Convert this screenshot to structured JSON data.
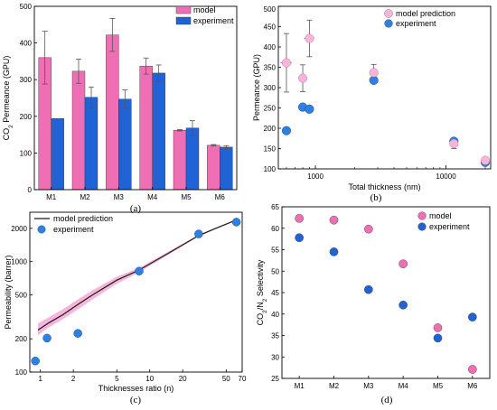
{
  "chart_data": [
    {
      "type": "bar",
      "panel_label": "(a)",
      "ylabel_main": "CO",
      "ylabel_sub": "2",
      "ylabel_rest": " Permeance (GPU)",
      "categories": [
        "M1",
        "M2",
        "M3",
        "M4",
        "M5",
        "M6"
      ],
      "ylim": [
        0,
        500
      ],
      "yticks": [
        0,
        100,
        200,
        300,
        400,
        500
      ],
      "legend_position": "top-right",
      "series": [
        {
          "name": "model",
          "color": "#f06fb4",
          "values": [
            360,
            323,
            422,
            337,
            162,
            121
          ],
          "err": [
            72,
            33,
            45,
            22,
            2,
            2
          ]
        },
        {
          "name": "experiment",
          "color": "#1f63d6",
          "values": [
            194,
            252,
            247,
            318,
            168,
            116
          ],
          "err": [
            0,
            28,
            25,
            22,
            20,
            4
          ]
        }
      ]
    },
    {
      "type": "scatter",
      "panel_label": "(b)",
      "xlabel": "Total thickness (nm)",
      "ylabel": "Permeance (GPU)",
      "x_scale": "log",
      "xlim": [
        520,
        22000
      ],
      "ylim": [
        100,
        500
      ],
      "xticks": [
        1000,
        10000
      ],
      "xtick_labels": [
        "1000",
        "10000"
      ],
      "yticks": [
        100,
        150,
        200,
        250,
        300,
        350,
        400,
        450,
        500
      ],
      "legend_position": "top-right",
      "series": [
        {
          "name": "model prediction",
          "color": "#f7b6d9",
          "points": [
            [
              600,
              361,
              72,
              60
            ],
            [
              800,
              323,
              33,
              60
            ],
            [
              900,
              421,
              45,
              80
            ],
            [
              2800,
              337,
              20,
              150
            ],
            [
              11500,
              162,
              12,
              0
            ],
            [
              20000,
              121,
              8,
              0
            ]
          ]
        },
        {
          "name": "experiment",
          "color": "#2f80e0",
          "points": [
            [
              600,
              194,
              0,
              0
            ],
            [
              800,
              252,
              28,
              0
            ],
            [
              900,
              247,
              25,
              0
            ],
            [
              2800,
              318,
              22,
              0
            ],
            [
              11500,
              168,
              20,
              0
            ],
            [
              20000,
              116,
              8,
              0
            ]
          ]
        }
      ]
    },
    {
      "type": "line",
      "panel_label": "(c)",
      "xlabel": "Thicknesses ratio (n)",
      "ylabel": "Permeability (barrer)",
      "x_scale": "log",
      "y_scale": "log",
      "xlim": [
        0.8,
        70
      ],
      "ylim": [
        100,
        2800
      ],
      "xticks": [
        1,
        2,
        5,
        10,
        20,
        50,
        70
      ],
      "xtick_labels": [
        "1",
        "2",
        "5",
        "10",
        "20",
        "50",
        "70"
      ],
      "yticks": [
        100,
        200,
        500,
        1000,
        2000
      ],
      "legend_position": "top-left",
      "series": [
        {
          "name": "model prediction",
          "color": "#1a1a1a",
          "band_color": "#f5a8d3",
          "x": [
            0.95,
            1.2,
            1.6,
            2.2,
            3,
            5,
            8,
            15,
            28,
            40,
            60
          ],
          "y": [
            240,
            280,
            330,
            410,
            500,
            680,
            840,
            1200,
            1720,
            2000,
            2350
          ],
          "lower": [
            215,
            255,
            300,
            370,
            455,
            630,
            800,
            1160,
            1690,
            1970,
            2320
          ],
          "upper": [
            275,
            315,
            370,
            455,
            550,
            730,
            880,
            1240,
            1750,
            2030,
            2380
          ]
        },
        {
          "name": "experiment",
          "color": "#2f80e0",
          "x": [
            0.9,
            1.15,
            2.2,
            8,
            28,
            62
          ],
          "y": [
            126,
            203,
            224,
            820,
            1780,
            2280
          ]
        }
      ]
    },
    {
      "type": "scatter",
      "panel_label": "(d)",
      "ylabel_main": "CO",
      "ylabel_sub": "2",
      "ylabel_mid": "/N",
      "ylabel_sub2": "2",
      "ylabel_rest": " Selectivity",
      "categories": [
        "M1",
        "M2",
        "M3",
        "M4",
        "M5",
        "M6"
      ],
      "ylim": [
        25,
        65
      ],
      "yticks": [
        25,
        30,
        35,
        40,
        45,
        50,
        55,
        60,
        65
      ],
      "legend_position": "top-right",
      "series": [
        {
          "name": "model",
          "color": "#f06fb4",
          "values": [
            62.3,
            61.9,
            59.8,
            51.7,
            36.8,
            27.1
          ]
        },
        {
          "name": "experiment",
          "color": "#1f63d6",
          "values": [
            57.8,
            54.5,
            45.7,
            42.1,
            34.4,
            39.3
          ]
        }
      ]
    }
  ]
}
